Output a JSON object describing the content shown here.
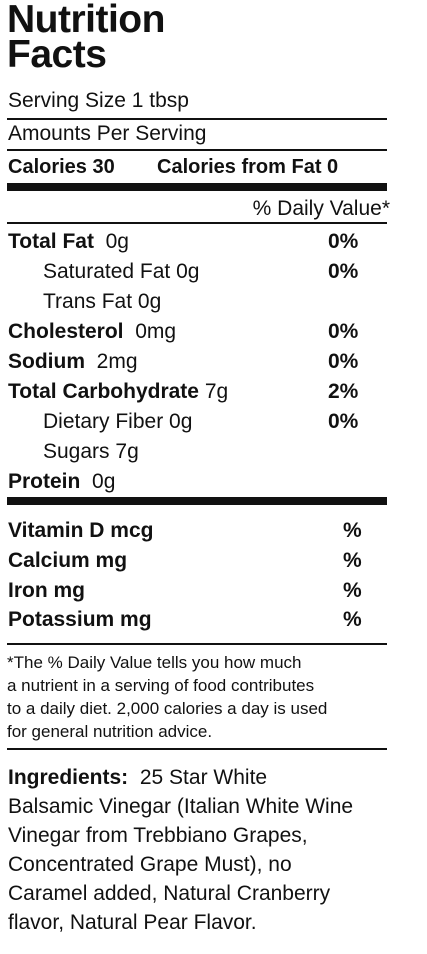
{
  "title_line1": "Nutrition",
  "title_line2": "Facts",
  "serving_size": "Serving Size 1 tbsp",
  "amounts_per_serving": "Amounts Per Serving",
  "calories": "Calories 30",
  "calories_from_fat": "Calories from Fat 0",
  "daily_value_header": "% Daily Value*",
  "nutrients": [
    {
      "name": "Total Fat",
      "amount": "0g",
      "dv": "0%"
    },
    {
      "name": "Saturated Fat",
      "amount": "0g",
      "dv": "0%"
    },
    {
      "name": "Trans Fat",
      "amount": "0g",
      "dv": ""
    },
    {
      "name": "Cholesterol",
      "amount": "0mg",
      "dv": "0%"
    },
    {
      "name": "Sodium",
      "amount": "2mg",
      "dv": "0%"
    },
    {
      "name": "Total Carbohydrate",
      "amount": "7g",
      "dv": "2%"
    },
    {
      "name": "Dietary Fiber",
      "amount": "0g",
      "dv": "0%"
    },
    {
      "name": "Sugars",
      "amount": "7g",
      "dv": ""
    },
    {
      "name": "Protein",
      "amount": "0g",
      "dv": ""
    }
  ],
  "vitamins": [
    {
      "name": "Vitamin D mcg",
      "dv": "%"
    },
    {
      "name": "Calcium mg",
      "dv": "%"
    },
    {
      "name": "Iron mg",
      "dv": "%"
    },
    {
      "name": "Potassium mg",
      "dv": "%"
    }
  ],
  "footnote_lines": [
    "*The % Daily Value tells you how much",
    "a nutrient in a serving of food contributes",
    "to a daily diet. 2,000 calories a day is used",
    "for general nutrition advice."
  ],
  "ingredients_label": "Ingredients:",
  "ingredients_text": "25 Star White",
  "ingredients_lines": [
    "Balsamic Vinegar (Italian White Wine",
    "Vinegar from Trebbiano Grapes,",
    "Concentrated Grape Must), no",
    "Caramel added, Natural Cranberry",
    "flavor, Natural Pear Flavor."
  ]
}
